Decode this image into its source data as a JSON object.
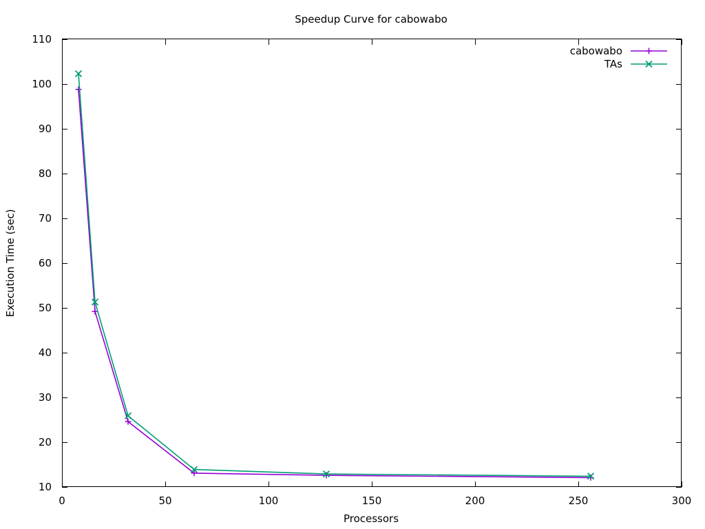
{
  "chart_data": {
    "type": "line",
    "title": "Speedup Curve for cabowabo",
    "xlabel": "Processors",
    "ylabel": "Execution Time (sec)",
    "xlim": [
      0,
      300
    ],
    "ylim": [
      10,
      110
    ],
    "xticks": [
      0,
      50,
      100,
      150,
      200,
      250,
      300
    ],
    "yticks": [
      10,
      20,
      30,
      40,
      50,
      60,
      70,
      80,
      90,
      100,
      110
    ],
    "grid": false,
    "legend_position": "top-right",
    "series": [
      {
        "name": "cabowabo",
        "color": "#9400d3",
        "marker": "plus",
        "x": [
          8,
          16,
          32,
          64,
          128,
          256
        ],
        "y": [
          98.8,
          49.2,
          24.6,
          13.1,
          12.6,
          12.1
        ]
      },
      {
        "name": "TAs",
        "color": "#009e73",
        "marker": "cross",
        "x": [
          8,
          16,
          32,
          64,
          128,
          256
        ],
        "y": [
          102.3,
          51.3,
          25.9,
          13.9,
          12.9,
          12.4
        ]
      }
    ]
  }
}
